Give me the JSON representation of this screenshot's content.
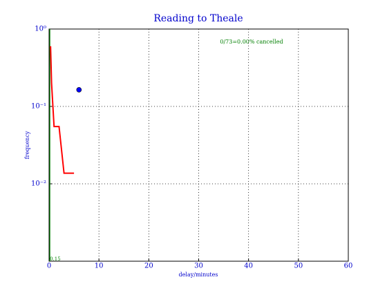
{
  "chart_data": {
    "type": "line",
    "title": "Reading to Theale",
    "xlabel": "delay/minutes",
    "ylabel": "frequency",
    "annotation": "0/73=0.00% cancelled",
    "log_y": true,
    "grid": true,
    "xlim": [
      0,
      60
    ],
    "xticks": [
      0,
      10,
      20,
      30,
      40,
      50,
      60
    ],
    "ylim": [
      0.001,
      1
    ],
    "yticks": [
      {
        "value": 1,
        "label": "10⁰"
      },
      {
        "value": 0.1,
        "label": "10⁻¹"
      },
      {
        "value": 0.01,
        "label": "10⁻²"
      }
    ],
    "series": [
      {
        "color": "#ff0000",
        "x": [
          0.3,
          0.5,
          1,
          2,
          3,
          5
        ],
        "values": [
          0.6,
          0.2,
          0.055,
          0.055,
          0.0137,
          0.0137
        ]
      }
    ],
    "points": {
      "color": "#0000ff",
      "x": [
        6
      ],
      "values": [
        0.164
      ]
    },
    "vline": {
      "x": 0.15,
      "color": "#007f00"
    }
  }
}
